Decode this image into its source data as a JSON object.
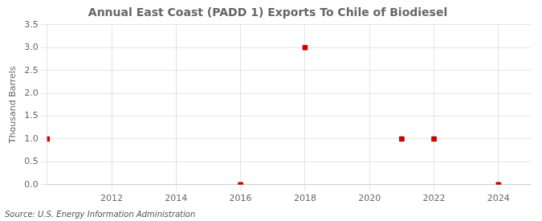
{
  "chart_data": {
    "type": "scatter",
    "title": "Annual East Coast (PADD 1) Exports To Chile of Biodiesel",
    "ylabel": "Thousand Barrels",
    "annotations": [
      "Source: U.S. Energy Information Administration"
    ],
    "x": [
      2010,
      2016,
      2018,
      2021,
      2022,
      2024
    ],
    "values": [
      1.0,
      0.0,
      3.0,
      1.0,
      1.0,
      0.0
    ],
    "color": "#cc0000",
    "marker": "square",
    "xlim": [
      2010,
      2025
    ],
    "xticks": [
      2012,
      2014,
      2016,
      2018,
      2020,
      2022,
      2024
    ],
    "ylim": [
      0.0,
      3.5
    ],
    "yticks": [
      {
        "value": 0,
        "label": "0.0"
      },
      0.5,
      {
        "value": 1,
        "label": "1.0"
      },
      1.5,
      {
        "value": 2,
        "label": "2.0"
      },
      2.5,
      {
        "value": 3,
        "label": "3.0"
      },
      3.5
    ],
    "grid": true
  }
}
